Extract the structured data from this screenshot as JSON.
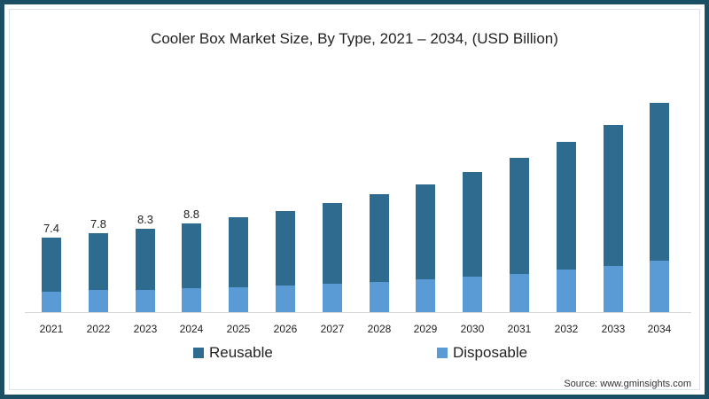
{
  "chart_data": {
    "type": "bar",
    "stacked": true,
    "title": "Cooler Box Market Size, By Type, 2021 – 2034, (USD Billion)",
    "xlabel": "",
    "ylabel": "",
    "categories": [
      "2021",
      "2022",
      "2023",
      "2024",
      "2025",
      "2026",
      "2027",
      "2028",
      "2029",
      "2030",
      "2031",
      "2032",
      "2033",
      "2034"
    ],
    "series": [
      {
        "name": "Disposable",
        "color": "#5b9bd5",
        "values": [
          2.0,
          2.2,
          2.2,
          2.4,
          2.5,
          2.6,
          2.8,
          3.0,
          3.3,
          3.5,
          3.8,
          4.2,
          4.6,
          5.1
        ]
      },
      {
        "name": "Reusable",
        "color": "#2e6b8e",
        "values": [
          5.4,
          5.6,
          6.1,
          6.4,
          6.9,
          7.4,
          8.0,
          8.7,
          9.4,
          10.4,
          11.5,
          12.7,
          14.0,
          15.7
        ]
      }
    ],
    "totals": [
      7.4,
      7.8,
      8.3,
      8.8,
      9.4,
      10.0,
      10.8,
      11.7,
      12.7,
      13.9,
      15.3,
      16.9,
      18.6,
      20.8
    ],
    "data_labels": {
      "2021": "7.4",
      "2022": "7.8",
      "2023": "8.3",
      "2024": "8.8"
    },
    "ylim": [
      0,
      21
    ],
    "grid": false,
    "legend_position": "bottom",
    "legend": [
      "Reusable",
      "Disposable"
    ],
    "source": "Source: www.gminsights.com"
  },
  "title": "Cooler Box Market Size, By Type, 2021 – 2034, (USD Billion)",
  "legend": {
    "reusable": "Reusable",
    "disposable": "Disposable"
  },
  "colors": {
    "reusable": "#2e6b8e",
    "disposable": "#5b9bd5",
    "frame": "#1b4f66"
  },
  "source": "Source: www.gminsights.com"
}
